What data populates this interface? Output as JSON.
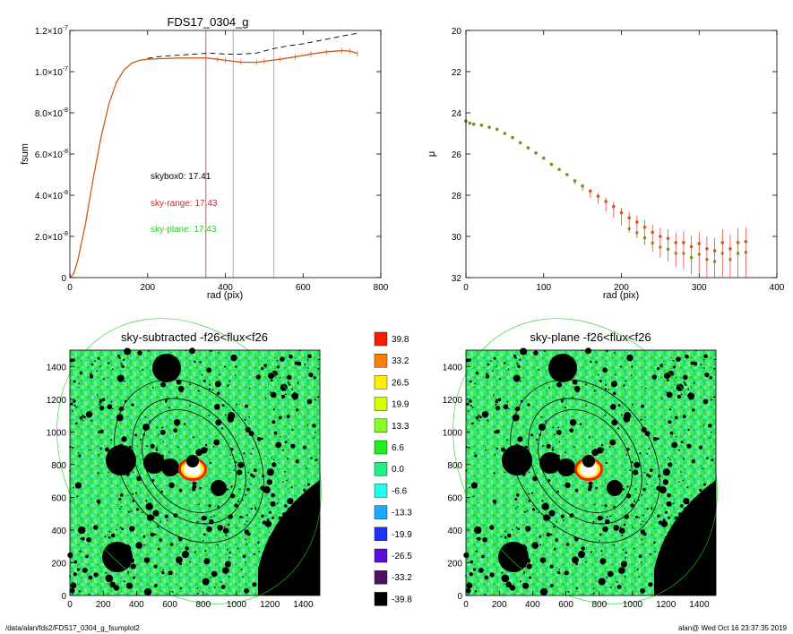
{
  "footer": {
    "path": "/data/alan/fds2/FDS17_0304_g_fsumplot2",
    "stamp": "alan@  Wed Oct 16 23:37:35 2019"
  },
  "chart_data": [
    {
      "id": "fsum",
      "type": "line",
      "title": "FDS17_0304_g",
      "xlabel": "rad (pix)",
      "ylabel": "fsum",
      "xlim": [
        0,
        800
      ],
      "ylim": [
        0,
        1.2e-07
      ],
      "xticks": [
        0,
        200,
        400,
        600,
        800
      ],
      "xtick_labels": [
        "0",
        "200",
        "400",
        "600",
        "800"
      ],
      "yticks": [
        0,
        2e-08,
        4e-08,
        6e-08,
        8e-08,
        1e-07,
        1.2e-07
      ],
      "ytick_mantissa": [
        "0",
        "2.0×10",
        "4.0×10",
        "6.0×10",
        "8.0×10",
        "1.0×10",
        "1.2×10"
      ],
      "ytick_exponent": [
        "",
        "-8",
        "-8",
        "-8",
        "-8",
        "-7",
        "-7"
      ],
      "vlines": [
        {
          "x": 350,
          "color": "#e02020"
        },
        {
          "x": 420,
          "color": "#999999"
        },
        {
          "x": 525,
          "color": "#999999"
        }
      ],
      "annotations": [
        {
          "text": "skybox0: 17.41",
          "color": "#000000"
        },
        {
          "text": "sky-range: 17.43",
          "color": "#e02020"
        },
        {
          "text": "sky-plane: 17.43",
          "color": "#22cc22"
        }
      ],
      "series": [
        {
          "style": "solid",
          "color": "#cc5a1c",
          "x": [
            0,
            10,
            20,
            40,
            60,
            80,
            100,
            120,
            140,
            160,
            180,
            200,
            220,
            250,
            280,
            310,
            350,
            380,
            400,
            440,
            480,
            500,
            540,
            580,
            620,
            660,
            700,
            720,
            740
          ],
          "y": [
            0,
            2e-09,
            8e-09,
            2.6e-08,
            4.8e-08,
            6.8e-08,
            8.4e-08,
            9.5e-08,
            1.01e-07,
            1.042e-07,
            1.055e-07,
            1.06e-07,
            1.062e-07,
            1.064e-07,
            1.066e-07,
            1.066e-07,
            1.067e-07,
            1.06e-07,
            1.055e-07,
            1.046e-07,
            1.045e-07,
            1.05e-07,
            1.06e-07,
            1.072e-07,
            1.085e-07,
            1.096e-07,
            1.102e-07,
            1.1e-07,
            1.088e-07
          ]
        },
        {
          "style": "dashed",
          "color": "#000000",
          "x": [
            200,
            240,
            280,
            320,
            360,
            400,
            440,
            480,
            520,
            560,
            600,
            640,
            680,
            720,
            740
          ],
          "y": [
            1.065e-07,
            1.075e-07,
            1.08e-07,
            1.085e-07,
            1.09e-07,
            1.085e-07,
            1.085e-07,
            1.09e-07,
            1.11e-07,
            1.125e-07,
            1.135e-07,
            1.15e-07,
            1.165e-07,
            1.18e-07,
            1.185e-07
          ]
        }
      ]
    },
    {
      "id": "mu",
      "type": "scatter",
      "title": "",
      "xlabel": "rad (pix)",
      "ylabel": "μ",
      "xlim": [
        0,
        400
      ],
      "ylim": [
        32,
        20
      ],
      "xticks": [
        0,
        100,
        200,
        300,
        400
      ],
      "xtick_labels": [
        "0",
        "100",
        "200",
        "300",
        "400"
      ],
      "yticks": [
        20,
        22,
        24,
        26,
        28,
        30,
        32
      ],
      "ytick_labels": [
        "20",
        "22",
        "24",
        "26",
        "28",
        "30",
        "32"
      ],
      "series": [
        {
          "color": "#7a8c1a",
          "x": [
            0,
            5,
            10,
            20,
            30,
            40,
            50,
            60,
            70,
            80,
            90,
            100,
            110,
            120,
            130,
            140,
            150,
            160,
            170,
            180,
            190,
            200,
            210,
            220,
            230,
            240,
            250,
            260,
            270,
            280,
            290,
            300,
            310,
            320,
            330,
            340,
            350,
            360
          ],
          "y": [
            24.4,
            24.5,
            24.55,
            24.6,
            24.7,
            24.8,
            25.0,
            25.2,
            25.45,
            25.7,
            25.95,
            26.2,
            26.5,
            26.75,
            27.0,
            27.3,
            27.55,
            27.8,
            28.05,
            28.3,
            28.55,
            28.85,
            29.1,
            29.3,
            29.55,
            29.8,
            30.0,
            30.1,
            30.3,
            30.3,
            30.5,
            30.35,
            30.6,
            30.7,
            30.3,
            30.6,
            30.3,
            30.25
          ]
        }
      ]
    },
    {
      "id": "img-sky-subtracted",
      "type": "heatmap",
      "title": "sky-subtracted -f26<flux<f26",
      "xlim": [
        0,
        1500
      ],
      "ylim": [
        0,
        1500
      ],
      "xticks": [
        0,
        200,
        400,
        600,
        800,
        1000,
        1200,
        1400
      ],
      "yticks": [
        0,
        200,
        400,
        600,
        800,
        1000,
        1200,
        1400
      ]
    },
    {
      "id": "img-sky-plane",
      "type": "heatmap",
      "title": "sky-plane -f26<flux<f26",
      "xlim": [
        0,
        1500
      ],
      "ylim": [
        0,
        1500
      ],
      "xticks": [
        0,
        200,
        400,
        600,
        800,
        1000,
        1200,
        1400
      ],
      "yticks": [
        0,
        200,
        400,
        600,
        800,
        1000,
        1200,
        1400
      ]
    },
    {
      "id": "colorbar",
      "type": "colorbar",
      "levels": [
        {
          "label": "39.8",
          "color": "#ff1a00"
        },
        {
          "label": "33.2",
          "color": "#ff8000"
        },
        {
          "label": "26.5",
          "color": "#ffee00"
        },
        {
          "label": "19.9",
          "color": "#d8ff00"
        },
        {
          "label": "13.3",
          "color": "#88ff22"
        },
        {
          "label": "6.6",
          "color": "#22ee22"
        },
        {
          "label": "0.0",
          "color": "#22ee88"
        },
        {
          "label": "-6.6",
          "color": "#22ffee"
        },
        {
          "label": "-13.3",
          "color": "#1aaaff"
        },
        {
          "label": "-19.9",
          "color": "#1a33ff"
        },
        {
          "label": "-26.5",
          "color": "#5a10d8"
        },
        {
          "label": "-33.2",
          "color": "#501060"
        },
        {
          "label": "-39.8",
          "color": "#000000"
        }
      ]
    }
  ]
}
